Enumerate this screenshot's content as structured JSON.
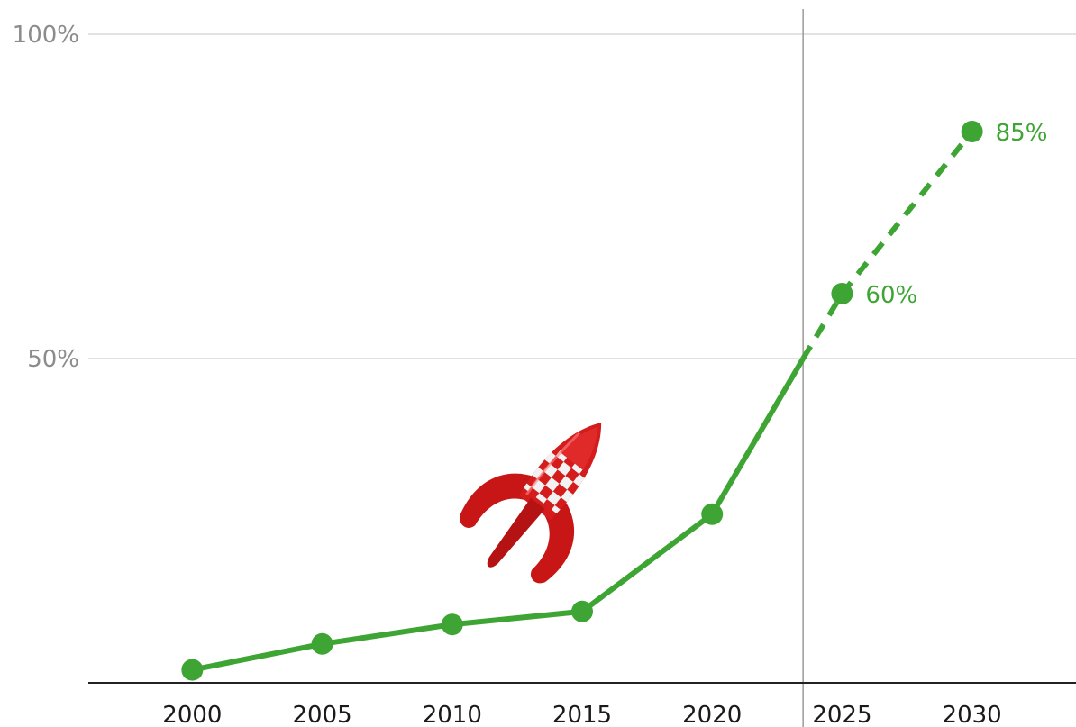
{
  "chart_data": {
    "type": "line",
    "title": "",
    "xlabel": "",
    "ylabel": "",
    "x_ticks": [
      "2000",
      "2005",
      "2010",
      "2015",
      "2020",
      "2025",
      "2030"
    ],
    "y_ticks": [
      "50%",
      "100%"
    ],
    "xlim": [
      1996,
      2034
    ],
    "ylim": [
      0,
      100
    ],
    "grid": "horizontal",
    "color": "#3ea534",
    "divider_x": 2023.5,
    "series": [
      {
        "style": "solid",
        "x": [
          2000,
          2005,
          2010,
          2015,
          2020,
          2023.5
        ],
        "y": [
          2,
          6,
          9,
          11,
          26,
          50
        ],
        "markers": [
          true,
          true,
          true,
          true,
          true,
          false
        ]
      },
      {
        "style": "dashed",
        "x": [
          2023.5,
          2025,
          2030
        ],
        "y": [
          50,
          60,
          85
        ],
        "markers": [
          false,
          true,
          true
        ],
        "labels": [
          "",
          "60%",
          "85%"
        ]
      }
    ],
    "illustration": "rocket-icon"
  }
}
